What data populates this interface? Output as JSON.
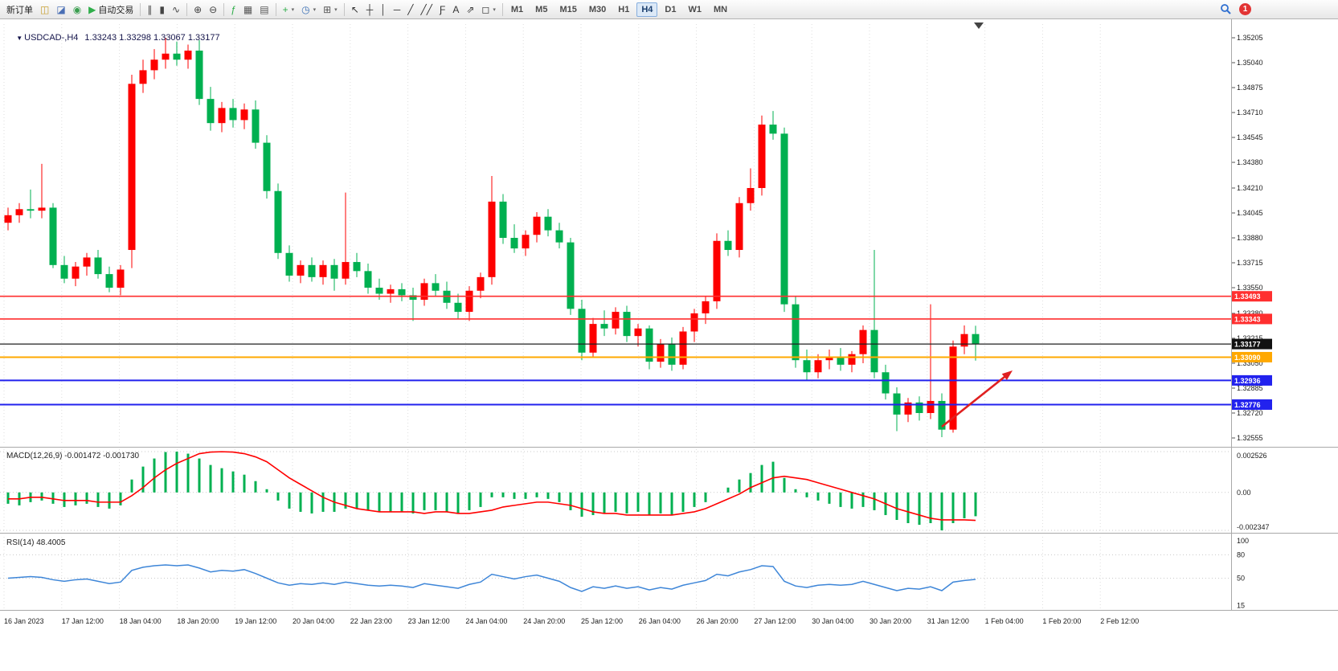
{
  "toolbar": {
    "items": [
      {
        "type": "button",
        "name": "new-order-button",
        "label": "新订单"
      },
      {
        "type": "icon",
        "name": "charts-icon",
        "glyph": "◫",
        "color": "#c8a032"
      },
      {
        "type": "icon",
        "name": "profiles-icon",
        "glyph": "◪",
        "color": "#4a6fb5"
      },
      {
        "type": "icon",
        "name": "market-watch-icon",
        "glyph": "◉",
        "color": "#3a9e4f"
      },
      {
        "type": "button",
        "name": "auto-trading-button",
        "label": "自动交易",
        "glyph": "▶",
        "color": "#2fae4a"
      },
      {
        "type": "sep"
      },
      {
        "type": "icon",
        "name": "bar-chart-icon",
        "glyph": "∥",
        "color": "#444444"
      },
      {
        "type": "icon",
        "name": "candlestick-chart-icon",
        "glyph": "▮",
        "color": "#444444"
      },
      {
        "type": "icon",
        "name": "line-chart-icon",
        "glyph": "∿",
        "color": "#444444"
      },
      {
        "type": "sep"
      },
      {
        "type": "icon",
        "name": "zoom-in-icon",
        "glyph": "⊕",
        "color": "#444444"
      },
      {
        "type": "icon",
        "name": "zoom-out-icon",
        "glyph": "⊖",
        "color": "#444444"
      },
      {
        "type": "sep"
      },
      {
        "type": "icon",
        "name": "indicators-icon",
        "glyph": "ƒ",
        "color": "#2fae4a"
      },
      {
        "type": "icon",
        "name": "tile-windows-icon",
        "glyph": "▦",
        "color": "#555555"
      },
      {
        "type": "icon",
        "name": "cascade-windows-icon",
        "glyph": "▤",
        "color": "#555555"
      },
      {
        "type": "sep"
      },
      {
        "type": "icon",
        "name": "new-chart-icon",
        "glyph": "+",
        "color": "#2fae4a",
        "caret": true
      },
      {
        "type": "icon",
        "name": "period-clock-icon",
        "glyph": "◷",
        "color": "#3a6fb5",
        "caret": true
      },
      {
        "type": "icon",
        "name": "templates-icon",
        "glyph": "⊞",
        "color": "#555555",
        "caret": true
      },
      {
        "type": "sep"
      },
      {
        "type": "icon",
        "name": "cursor-icon",
        "glyph": "↖",
        "color": "#333333"
      },
      {
        "type": "icon",
        "name": "crosshair-icon",
        "glyph": "┼",
        "color": "#333333"
      },
      {
        "type": "icon",
        "name": "vertical-line-icon",
        "glyph": "│",
        "color": "#333333"
      },
      {
        "type": "icon",
        "name": "horizontal-line-icon",
        "glyph": "─",
        "color": "#333333"
      },
      {
        "type": "icon",
        "name": "trendline-icon",
        "glyph": "╱",
        "color": "#333333"
      },
      {
        "type": "icon",
        "name": "equidistant-channel-icon",
        "glyph": "╱╱",
        "color": "#333333"
      },
      {
        "type": "icon",
        "name": "fibonacci-icon",
        "glyph": "Ƒ",
        "color": "#333333"
      },
      {
        "type": "icon",
        "name": "text-label-icon",
        "glyph": "A",
        "color": "#333333"
      },
      {
        "type": "icon",
        "name": "arrows-icon",
        "glyph": "⇗",
        "color": "#333333"
      },
      {
        "type": "icon",
        "name": "shapes-icon",
        "glyph": "◻",
        "color": "#333333",
        "caret": true
      },
      {
        "type": "sep"
      }
    ],
    "timeframes": [
      "M1",
      "M5",
      "M15",
      "M30",
      "H1",
      "H4",
      "D1",
      "W1",
      "MN"
    ],
    "active_timeframe": "H4",
    "badge_count": "1"
  },
  "chart": {
    "collapse_icon": "▼",
    "symbol_period": "USDCAD-,H4",
    "ohlc_text": "1.33243 1.33298 1.33067 1.33177"
  },
  "indicators": {
    "macd_label": "MACD(12,26,9) -0.001472 -0.001730",
    "rsi_label": "RSI(14) 48.4005",
    "macd_scale": [
      "0.002526",
      "0.00",
      "-0.002347"
    ],
    "rsi_scale": [
      "100",
      "80",
      "50",
      "15"
    ]
  },
  "chart_data": {
    "type": "candlestick",
    "symbol": "USDCAD-",
    "timeframe": "H4",
    "current_ohlc": {
      "open": 1.33243,
      "high": 1.33298,
      "low": 1.33067,
      "close": 1.33177
    },
    "up_color": "#fd0000",
    "down_color": "#00b050",
    "price_axis_labels": [
      "1.35205",
      "1.35040",
      "1.34875",
      "1.34710",
      "1.34545",
      "1.34380",
      "1.34210",
      "1.34045",
      "1.33880",
      "1.33715",
      "1.33550",
      "1.33380",
      "1.33215",
      "1.33050",
      "1.32885",
      "1.32720",
      "1.32555"
    ],
    "time_axis_labels": [
      "16 Jan 2023",
      "17 Jan 12:00",
      "18 Jan 04:00",
      "18 Jan 20:00",
      "19 Jan 12:00",
      "20 Jan 04:00",
      "22 Jan 23:00",
      "23 Jan 12:00",
      "24 Jan 04:00",
      "24 Jan 20:00",
      "25 Jan 12:00",
      "26 Jan 04:00",
      "26 Jan 20:00",
      "27 Jan 12:00",
      "30 Jan 04:00",
      "30 Jan 20:00",
      "31 Jan 12:00",
      "1 Feb 04:00",
      "1 Feb 20:00",
      "2 Feb 12:00"
    ],
    "levels": [
      {
        "price": 1.33493,
        "label": "1.33493",
        "color": "#ff2f2f",
        "tag_bg": "#ff2f2f",
        "width": 1.6
      },
      {
        "price": 1.33343,
        "label": "1.33343",
        "color": "#ff2f2f",
        "tag_bg": "#ff2f2f",
        "width": 1.6
      },
      {
        "price": 1.33177,
        "label": "1.33177",
        "color": "#202020",
        "tag_bg": "#111111",
        "width": 1.2
      },
      {
        "price": 1.3309,
        "label": "1.33090",
        "color": "#ffa800",
        "tag_bg": "#ffa800",
        "width": 2
      },
      {
        "price": 1.32936,
        "label": "1.32936",
        "color": "#2222ee",
        "tag_bg": "#2222ee",
        "width": 2
      },
      {
        "price": 1.32776,
        "label": "1.32776",
        "color": "#2222ee",
        "tag_bg": "#2222ee",
        "width": 2
      }
    ],
    "candles": [
      [
        1.3398,
        1.3408,
        1.3393,
        1.3403
      ],
      [
        1.3403,
        1.3411,
        1.3398,
        1.3407
      ],
      [
        1.3407,
        1.342,
        1.3401,
        1.3406
      ],
      [
        1.3406,
        1.3437,
        1.3401,
        1.3408
      ],
      [
        1.3408,
        1.3411,
        1.3368,
        1.337
      ],
      [
        1.337,
        1.3376,
        1.3358,
        1.3361
      ],
      [
        1.3361,
        1.3372,
        1.3356,
        1.3369
      ],
      [
        1.3369,
        1.3378,
        1.3363,
        1.3375
      ],
      [
        1.3375,
        1.338,
        1.3361,
        1.3364
      ],
      [
        1.3364,
        1.3369,
        1.3352,
        1.3355
      ],
      [
        1.3355,
        1.337,
        1.335,
        1.3367
      ],
      [
        1.338,
        1.3496,
        1.3368,
        1.349
      ],
      [
        1.349,
        1.3506,
        1.3484,
        1.3499
      ],
      [
        1.3499,
        1.3513,
        1.3493,
        1.3506
      ],
      [
        1.3506,
        1.35205,
        1.35,
        1.351
      ],
      [
        1.351,
        1.3518,
        1.3502,
        1.3506
      ],
      [
        1.3506,
        1.3516,
        1.35,
        1.3512
      ],
      [
        1.3512,
        1.3519,
        1.3476,
        1.348
      ],
      [
        1.348,
        1.3488,
        1.3459,
        1.3464
      ],
      [
        1.3464,
        1.3478,
        1.3458,
        1.3474
      ],
      [
        1.3474,
        1.348,
        1.3461,
        1.3466
      ],
      [
        1.3466,
        1.3477,
        1.346,
        1.3473
      ],
      [
        1.3473,
        1.3479,
        1.3447,
        1.3451
      ],
      [
        1.3451,
        1.3456,
        1.3414,
        1.3419
      ],
      [
        1.3419,
        1.3424,
        1.3374,
        1.3378
      ],
      [
        1.3378,
        1.3383,
        1.3359,
        1.3363
      ],
      [
        1.3363,
        1.3373,
        1.3358,
        1.337
      ],
      [
        1.337,
        1.3375,
        1.3359,
        1.3362
      ],
      [
        1.3362,
        1.3373,
        1.3357,
        1.337
      ],
      [
        1.337,
        1.3374,
        1.3353,
        1.3361
      ],
      [
        1.3361,
        1.3418,
        1.3357,
        1.3372
      ],
      [
        1.3372,
        1.3378,
        1.3362,
        1.3366
      ],
      [
        1.3366,
        1.3371,
        1.3351,
        1.3355
      ],
      [
        1.3355,
        1.3361,
        1.3347,
        1.3351
      ],
      [
        1.3351,
        1.3357,
        1.3345,
        1.3354
      ],
      [
        1.3354,
        1.3358,
        1.3346,
        1.335
      ],
      [
        1.335,
        1.3355,
        1.3333,
        1.3347
      ],
      [
        1.3347,
        1.3361,
        1.3343,
        1.3358
      ],
      [
        1.3358,
        1.3364,
        1.3349,
        1.3353
      ],
      [
        1.3353,
        1.3359,
        1.3341,
        1.3345
      ],
      [
        1.3345,
        1.3351,
        1.3334,
        1.3339
      ],
      [
        1.3339,
        1.3356,
        1.3333,
        1.3353
      ],
      [
        1.3353,
        1.3365,
        1.3348,
        1.3362
      ],
      [
        1.3362,
        1.3429,
        1.3357,
        1.3412
      ],
      [
        1.3412,
        1.3417,
        1.3384,
        1.3388
      ],
      [
        1.3388,
        1.3397,
        1.3378,
        1.3381
      ],
      [
        1.3381,
        1.3393,
        1.3376,
        1.339
      ],
      [
        1.339,
        1.3405,
        1.3385,
        1.3402
      ],
      [
        1.3402,
        1.3407,
        1.3389,
        1.3393
      ],
      [
        1.3393,
        1.3398,
        1.3381,
        1.3385
      ],
      [
        1.3385,
        1.3388,
        1.3337,
        1.3341
      ],
      [
        1.3341,
        1.3347,
        1.3307,
        1.3312
      ],
      [
        1.3312,
        1.3335,
        1.3309,
        1.3331
      ],
      [
        1.3331,
        1.334,
        1.3323,
        1.3328
      ],
      [
        1.3328,
        1.3342,
        1.3324,
        1.3339
      ],
      [
        1.3339,
        1.3343,
        1.3319,
        1.3323
      ],
      [
        1.3323,
        1.3331,
        1.3316,
        1.3328
      ],
      [
        1.3328,
        1.333,
        1.3301,
        1.3306
      ],
      [
        1.3306,
        1.3321,
        1.3302,
        1.3318
      ],
      [
        1.3318,
        1.3322,
        1.33,
        1.3304
      ],
      [
        1.3304,
        1.3329,
        1.3301,
        1.3326
      ],
      [
        1.3326,
        1.3341,
        1.3319,
        1.3338
      ],
      [
        1.3338,
        1.3349,
        1.3331,
        1.3346
      ],
      [
        1.3346,
        1.3391,
        1.3341,
        1.3386
      ],
      [
        1.3386,
        1.3393,
        1.3376,
        1.338
      ],
      [
        1.338,
        1.3415,
        1.3375,
        1.3411
      ],
      [
        1.3411,
        1.3434,
        1.3406,
        1.3421
      ],
      [
        1.3421,
        1.3469,
        1.3416,
        1.3463
      ],
      [
        1.3463,
        1.3472,
        1.3453,
        1.3457
      ],
      [
        1.3457,
        1.3461,
        1.3339,
        1.3344
      ],
      [
        1.3344,
        1.3349,
        1.3302,
        1.3307
      ],
      [
        1.3307,
        1.3314,
        1.3294,
        1.3299
      ],
      [
        1.3299,
        1.3311,
        1.3295,
        1.3307
      ],
      [
        1.3307,
        1.3314,
        1.3301,
        1.3309
      ],
      [
        1.3309,
        1.3315,
        1.33,
        1.3304
      ],
      [
        1.3304,
        1.3313,
        1.3299,
        1.3311
      ],
      [
        1.3311,
        1.333,
        1.3305,
        1.3327
      ],
      [
        1.3327,
        1.338,
        1.3295,
        1.3299
      ],
      [
        1.3299,
        1.3304,
        1.3281,
        1.3285
      ],
      [
        1.3285,
        1.3289,
        1.326,
        1.3271
      ],
      [
        1.3271,
        1.3282,
        1.3266,
        1.3279
      ],
      [
        1.3279,
        1.3283,
        1.3267,
        1.3272
      ],
      [
        1.3272,
        1.3344,
        1.3268,
        1.328
      ],
      [
        1.328,
        1.3285,
        1.3256,
        1.3261
      ],
      [
        1.3261,
        1.332,
        1.3259,
        1.3316
      ],
      [
        1.3316,
        1.333,
        1.3311,
        1.33243
      ],
      [
        1.33243,
        1.33298,
        1.33067,
        1.33177
      ]
    ],
    "macd": {
      "values_text": "-0.001472 -0.001730",
      "max": 0.002526,
      "min": -0.002347,
      "hist": [
        -0.0007,
        -0.0008,
        -0.0006,
        -0.0005,
        -0.0007,
        -0.0009,
        -0.0008,
        -0.0007,
        -0.0009,
        -0.001,
        -0.0008,
        0.0008,
        0.0016,
        0.0021,
        0.0025,
        0.002526,
        0.0024,
        0.0021,
        0.0017,
        0.0015,
        0.0013,
        0.0011,
        0.0007,
        0.0002,
        -0.0005,
        -0.001,
        -0.0012,
        -0.0013,
        -0.0012,
        -0.0012,
        -0.001,
        -0.001,
        -0.0011,
        -0.0012,
        -0.0012,
        -0.0012,
        -0.0013,
        -0.0011,
        -0.0011,
        -0.0012,
        -0.0013,
        -0.0011,
        -0.0009,
        -0.0003,
        -0.0003,
        -0.0004,
        -0.0004,
        -0.0003,
        -0.0004,
        -0.0006,
        -0.0011,
        -0.0015,
        -0.0014,
        -0.0013,
        -0.0012,
        -0.0013,
        -0.0012,
        -0.0014,
        -0.0013,
        -0.0014,
        -0.0012,
        -0.0009,
        -0.0006,
        0.0,
        0.0003,
        0.0008,
        0.0012,
        0.0017,
        0.0019,
        0.0009,
        0.0002,
        -0.0003,
        -0.0005,
        -0.0007,
        -0.0009,
        -0.001,
        -0.0009,
        -0.0011,
        -0.0014,
        -0.0017,
        -0.0019,
        -0.002,
        -0.0019,
        -0.002347,
        -0.0019,
        -0.0016,
        -0.001472
      ],
      "signal": [
        -0.0004,
        -0.0004,
        -0.0003,
        -0.0003,
        -0.0004,
        -0.0005,
        -0.0005,
        -0.0005,
        -0.0006,
        -0.0006,
        -0.0006,
        -0.0002,
        0.0003,
        0.0009,
        0.0014,
        0.0018,
        0.0021,
        0.0024,
        0.0025,
        0.00252,
        0.0025,
        0.0024,
        0.0022,
        0.0019,
        0.0014,
        0.0009,
        0.0005,
        0.0001,
        -0.0003,
        -0.0006,
        -0.0008,
        -0.001,
        -0.0011,
        -0.0012,
        -0.0012,
        -0.0012,
        -0.0012,
        -0.0013,
        -0.0012,
        -0.0012,
        -0.0013,
        -0.0013,
        -0.0012,
        -0.0011,
        -0.0009,
        -0.0008,
        -0.0007,
        -0.0006,
        -0.0006,
        -0.0007,
        -0.0008,
        -0.001,
        -0.0012,
        -0.0013,
        -0.0013,
        -0.0014,
        -0.0014,
        -0.0014,
        -0.0014,
        -0.0014,
        -0.0013,
        -0.0012,
        -0.001,
        -0.0007,
        -0.0004,
        -0.0001,
        0.0003,
        0.0006,
        0.0009,
        0.001,
        0.0009,
        0.0008,
        0.0006,
        0.0004,
        0.0002,
        0.0,
        -0.0002,
        -0.0004,
        -0.0007,
        -0.001,
        -0.0012,
        -0.0014,
        -0.0016,
        -0.0017,
        -0.0017,
        -0.0017,
        -0.00173
      ]
    },
    "rsi": {
      "current": 48.4005,
      "levels": [
        80,
        50
      ],
      "values": [
        50,
        51,
        52,
        51,
        48,
        46,
        48,
        49,
        46,
        43,
        45,
        60,
        64,
        66,
        67,
        66,
        67,
        63,
        58,
        60,
        59,
        61,
        56,
        50,
        44,
        41,
        43,
        42,
        44,
        42,
        45,
        43,
        41,
        40,
        41,
        40,
        38,
        43,
        41,
        39,
        37,
        42,
        45,
        55,
        52,
        49,
        52,
        54,
        50,
        46,
        38,
        33,
        39,
        37,
        40,
        37,
        39,
        35,
        38,
        36,
        41,
        44,
        47,
        55,
        53,
        58,
        61,
        66,
        65,
        46,
        40,
        38,
        41,
        42,
        41,
        42,
        46,
        42,
        38,
        34,
        37,
        36,
        39,
        34,
        45,
        47,
        48.4
      ]
    },
    "annotation_arrow": {
      "color": "#e02020"
    },
    "line_colors": {
      "macd_signal": "#ff0000",
      "rsi_line": "#3e86d8"
    }
  }
}
